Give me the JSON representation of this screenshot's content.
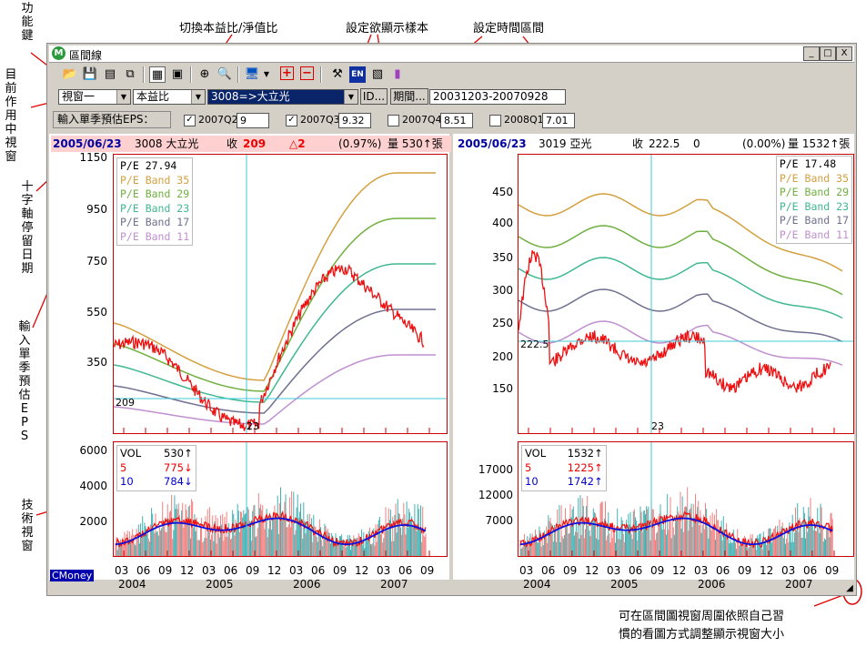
{
  "annotations": {
    "function_keys": "功能鍵",
    "current_window": "目前作用中視窗",
    "crosshair_date": "十字軸停留日期",
    "input_eps": "輸入單季預估EPS",
    "tech_window": "技術視窗",
    "switch_ratio": "切換本益比/淨值比",
    "set_sample": "設定欲顯示樣本",
    "set_period": "設定時間區間",
    "resize_note_1": "可在區間圖視窗周圍依照自己習",
    "resize_note_2": "慣的看圖方式調整顯示視窗大小"
  },
  "window": {
    "title": "區間線",
    "logo": "M",
    "minimize": "_",
    "maximize": "□",
    "close": "X"
  },
  "toolbar": {
    "icons": [
      "open-icon",
      "save-icon",
      "export-icon",
      "copy-icon",
      "grid-icon",
      "window-icon",
      "crosshair-icon",
      "zoom-icon",
      "monitor-icon",
      "plus-icon",
      "minus-icon",
      "tool-icon",
      "en-icon",
      "chart-icon",
      "book-icon"
    ]
  },
  "controls": {
    "window_select": "視窗一",
    "ratio_select": "本益比",
    "stock_select": "3008=>大立光",
    "id_button": "ID...",
    "period_button": "期間...",
    "period_value": "20031203-20070928"
  },
  "eps": {
    "label": "輸入單季預估EPS：",
    "quarters": [
      {
        "label": "2007Q2",
        "checked": true,
        "value": "9"
      },
      {
        "label": "2007Q3",
        "checked": true,
        "value": "9.32"
      },
      {
        "label": "2007Q4",
        "checked": false,
        "value": "8.51"
      },
      {
        "label": "2008Q1",
        "checked": false,
        "value": "7.01"
      }
    ]
  },
  "left": {
    "date": "2005/06/23",
    "stock": "3008 大立光",
    "close_label": "收",
    "close": "209",
    "change": "△2",
    "pct": "(0.97%)",
    "vol": "量 530↑張",
    "crosshair_y_label": "209",
    "crosshair_x_label": "23",
    "legend": [
      "P/E 27.94",
      "P/E Band 35",
      "P/E Band 29",
      "P/E Band 23",
      "P/E Band 17",
      "P/E Band 11"
    ],
    "yticks": [
      "1150",
      "950",
      "750",
      "550",
      "350"
    ],
    "vol_yticks": [
      "6000",
      "4000",
      "2000"
    ],
    "vol_legend": [
      {
        "name": "VOL",
        "val": "530",
        "arrow": "↑"
      },
      {
        "name": "5",
        "val": "775",
        "arrow": "↓"
      },
      {
        "name": "10",
        "val": "784",
        "arrow": "↓"
      }
    ]
  },
  "right": {
    "date": "2005/06/23",
    "stock": "3019 亞光",
    "close_label": "收",
    "close": "222.5",
    "change": "0",
    "pct": "(0.00%)",
    "vol": "量 1532↑張",
    "crosshair_y_label": "222.5",
    "crosshair_x_label": "23",
    "legend": [
      "P/E 17.48",
      "P/E Band 35",
      "P/E Band 29",
      "P/E Band 23",
      "P/E Band 17",
      "P/E Band 11"
    ],
    "yticks": [
      "450",
      "400",
      "350",
      "300",
      "250",
      "200",
      "150"
    ],
    "vol_yticks": [
      "17000",
      "12000",
      "7000"
    ],
    "vol_legend": [
      {
        "name": "VOL",
        "val": "1532",
        "arrow": "↑"
      },
      {
        "name": "5",
        "val": "1225",
        "arrow": "↑"
      },
      {
        "name": "10",
        "val": "1742",
        "arrow": "↑"
      }
    ]
  },
  "xaxis": {
    "months": [
      "03",
      "06",
      "09",
      "12",
      "03",
      "06",
      "09",
      "12",
      "03",
      "06",
      "09",
      "12",
      "03",
      "06",
      "09"
    ],
    "years": [
      "2004",
      "2005",
      "2006",
      "2007"
    ]
  },
  "brand": "CMoney",
  "colors": {
    "band35": "#d4a040",
    "band29": "#70b040",
    "band23": "#40b890",
    "band17": "#707090",
    "band11": "#c090d0",
    "price": "#ee1010",
    "crosshair": "#40c8d8",
    "vol_bar": "#f08080",
    "vol_bar2": "#40b0b0",
    "ma5": "#ee1010",
    "ma10": "#1010dd"
  }
}
